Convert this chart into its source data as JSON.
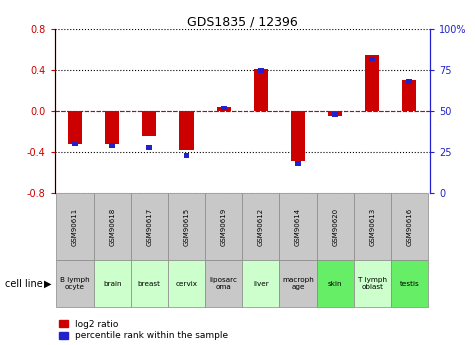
{
  "title": "GDS1835 / 12396",
  "samples": [
    "GSM90611",
    "GSM90618",
    "GSM90617",
    "GSM90615",
    "GSM90619",
    "GSM90612",
    "GSM90614",
    "GSM90620",
    "GSM90613",
    "GSM90616"
  ],
  "cell_lines": [
    "B lymph\nocyte",
    "brain",
    "breast",
    "cervix",
    "liposarc\noma",
    "liver",
    "macroph\nage",
    "skin",
    "T lymph\noblast",
    "testis"
  ],
  "log2_ratio": [
    -0.32,
    -0.32,
    -0.24,
    -0.38,
    0.04,
    0.41,
    -0.49,
    -0.05,
    0.55,
    0.31
  ],
  "percentile_rank": [
    30,
    29,
    28,
    23,
    52,
    75,
    18,
    48,
    82,
    68
  ],
  "ylim_left": [
    -0.8,
    0.8
  ],
  "ylim_right": [
    0,
    100
  ],
  "red_color": "#CC0000",
  "blue_color": "#2222CC",
  "grid_color": "black",
  "bg_cells_gray": "#c8c8c8",
  "bg_cells_green_light": "#ccffcc",
  "bg_cells_green_medium": "#66ee66",
  "legend_red": "log2 ratio",
  "legend_blue": "percentile rank within the sample",
  "cell_line_label": "cell line",
  "yticks_left": [
    -0.8,
    -0.4,
    0.0,
    0.4,
    0.8
  ],
  "yticks_right": [
    0,
    25,
    50,
    75,
    100
  ],
  "cell_colors": [
    "gray",
    "light",
    "light",
    "light",
    "gray",
    "light",
    "gray",
    "medium",
    "light",
    "medium"
  ]
}
